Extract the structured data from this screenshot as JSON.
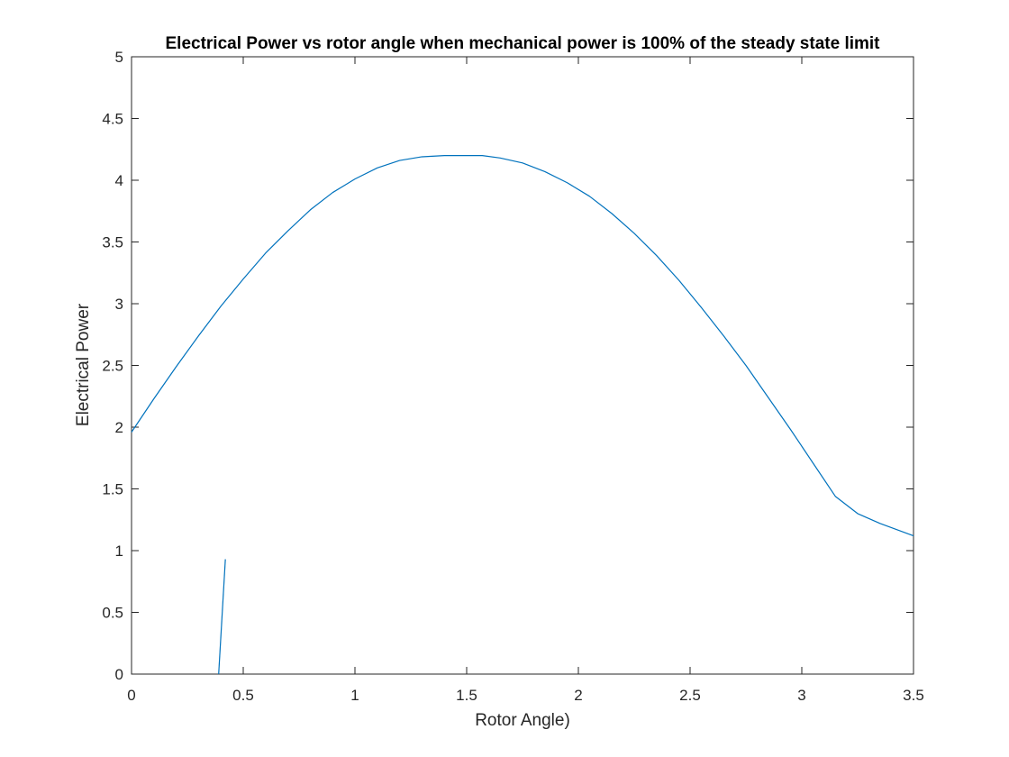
{
  "chart_data": {
    "type": "line",
    "title": "Electrical Power vs rotor angle when mechanical power is 100% of the steady state limit",
    "xlabel": "Rotor Angle)",
    "ylabel": "Electrical Power",
    "xlim": [
      0,
      3.5
    ],
    "ylim": [
      0,
      5
    ],
    "xticks": [
      "0",
      "0.5",
      "1",
      "1.5",
      "2",
      "2.5",
      "3",
      "3.5"
    ],
    "yticks": [
      "0",
      "0.5",
      "1",
      "1.5",
      "2",
      "2.5",
      "3",
      "3.5",
      "4",
      "4.5",
      "5"
    ],
    "grid": false,
    "legend": "none",
    "series": [
      {
        "color": "#0072BD",
        "x": [
          0,
          0.1,
          0.2,
          0.3,
          0.4,
          0.5,
          0.6,
          0.7,
          0.8,
          0.9,
          1.0,
          1.1,
          1.2,
          1.3,
          1.4,
          1.5,
          1.57,
          1.65,
          1.75,
          1.85,
          1.95,
          2.05,
          2.15,
          2.25,
          2.35,
          2.45,
          2.55,
          2.65,
          2.75,
          2.85,
          2.95,
          3.05,
          3.15,
          3.25,
          3.35,
          3.5
        ],
        "y": [
          1.96,
          2.23,
          2.49,
          2.74,
          2.98,
          3.2,
          3.41,
          3.59,
          3.76,
          3.9,
          4.01,
          4.1,
          4.16,
          4.19,
          4.2,
          4.2,
          4.2,
          4.18,
          4.14,
          4.07,
          3.98,
          3.87,
          3.73,
          3.57,
          3.39,
          3.19,
          2.97,
          2.74,
          2.5,
          2.24,
          1.98,
          1.71,
          1.44,
          1.3,
          1.22,
          1.12
        ]
      },
      {
        "color": "#0072BD",
        "x": [
          0.39,
          0.42
        ],
        "y": [
          0,
          0.93
        ]
      }
    ]
  }
}
